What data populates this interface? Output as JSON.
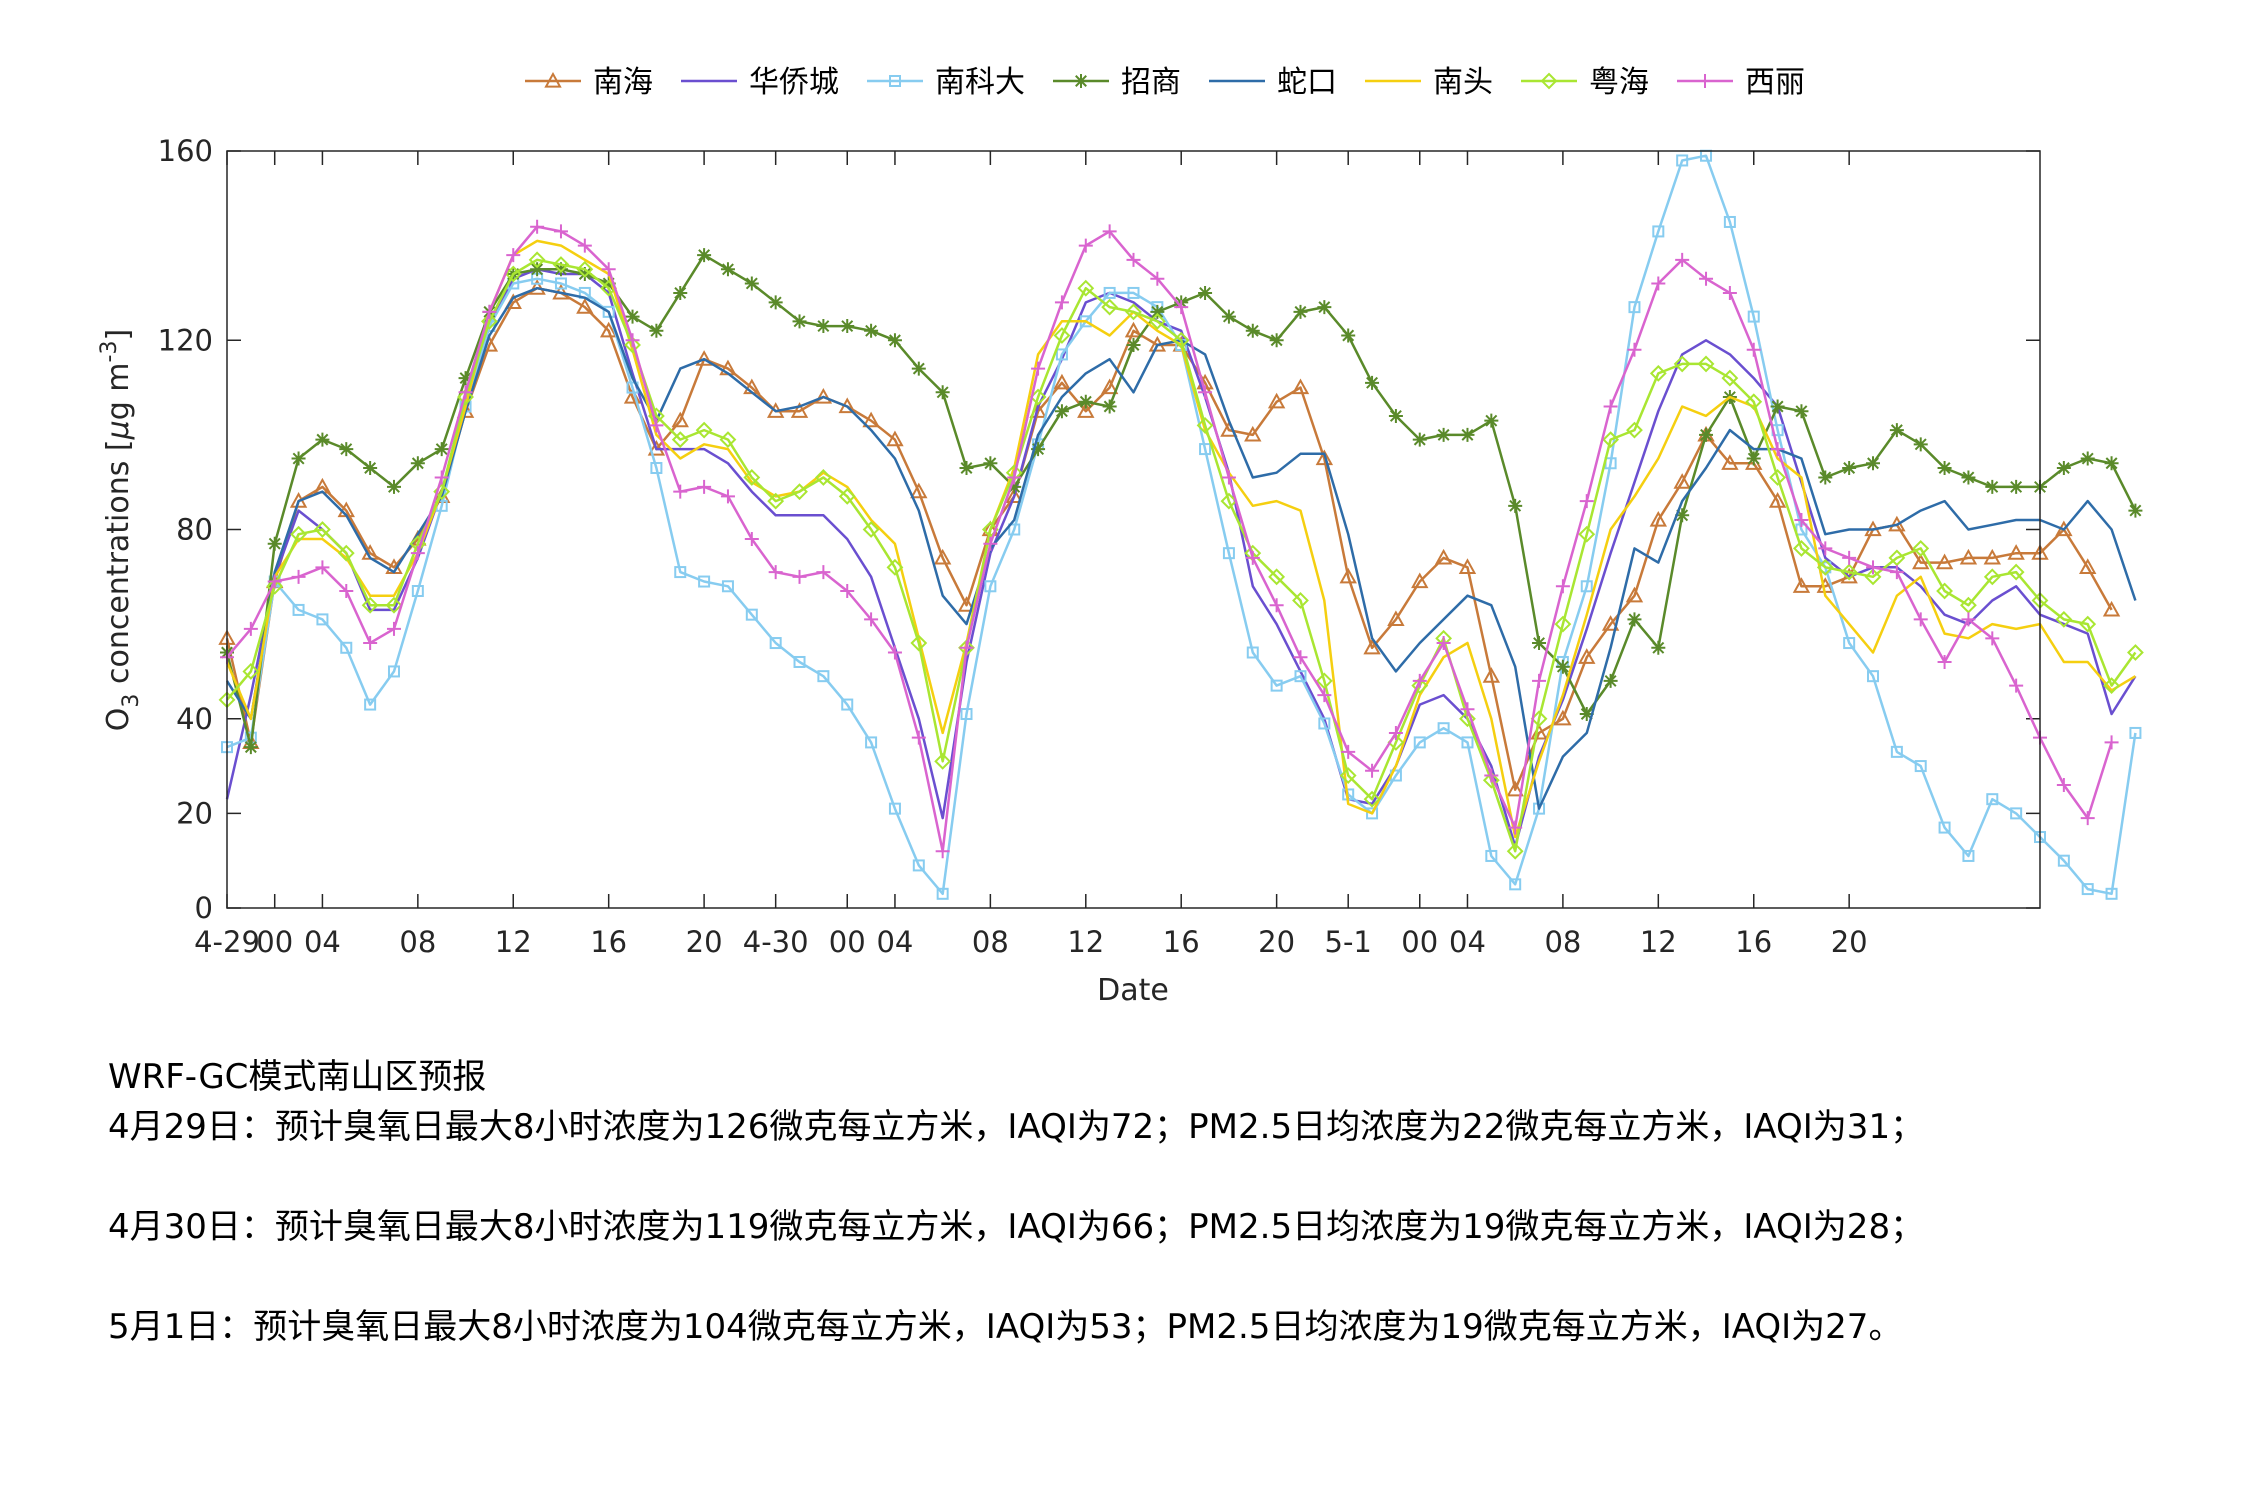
{
  "chart_data": {
    "type": "line",
    "xlabel": "Date",
    "ylabel": "O3 concentrations [μg m-3]",
    "ylabel_parts": {
      "o": "O",
      "sub": "3",
      "middle": " concentrations [",
      "mu": "μ",
      "g": "g m",
      "sup": "-3",
      "end": "]"
    },
    "ylim": [
      0,
      160
    ],
    "yticks": [
      "0",
      "20",
      "40",
      "80",
      "120",
      "160"
    ],
    "ytick_values": [
      0,
      20,
      40,
      80,
      120,
      160
    ],
    "xlim": [
      0,
      76
    ],
    "xticks": [
      {
        "h": 0,
        "label": "4-29"
      },
      {
        "h": 2,
        "label": "00"
      },
      {
        "h": 4,
        "label": "04"
      },
      {
        "h": 8,
        "label": "08"
      },
      {
        "h": 12,
        "label": "12"
      },
      {
        "h": 16,
        "label": "16"
      },
      {
        "h": 20,
        "label": "20"
      },
      {
        "h": 23,
        "label": "4-30"
      },
      {
        "h": 26,
        "label": "00"
      },
      {
        "h": 28,
        "label": "04"
      },
      {
        "h": 32,
        "label": "08"
      },
      {
        "h": 36,
        "label": "12"
      },
      {
        "h": 40,
        "label": "16"
      },
      {
        "h": 44,
        "label": "20"
      },
      {
        "h": 47,
        "label": "5-1"
      },
      {
        "h": 50,
        "label": "00"
      },
      {
        "h": 52,
        "label": "04"
      },
      {
        "h": 56,
        "label": "08"
      },
      {
        "h": 60,
        "label": "12"
      },
      {
        "h": 64,
        "label": "16"
      },
      {
        "h": 68,
        "label": "20"
      }
    ],
    "series": [
      {
        "name": "南海",
        "color": "#c87a3a",
        "marker": "triangle",
        "values": [
          57,
          35,
          69,
          86,
          89,
          84,
          75,
          72,
          78,
          87,
          105,
          119,
          128,
          131,
          130,
          127,
          122,
          108,
          97,
          103,
          116,
          114,
          110,
          105,
          105,
          108,
          106,
          103,
          99,
          88,
          74,
          64,
          80,
          87,
          105,
          111,
          105,
          110,
          122,
          119,
          119,
          111,
          101,
          100,
          107,
          110,
          95,
          70,
          55,
          61,
          69,
          74,
          72,
          49,
          25,
          37,
          40,
          53,
          60,
          66,
          82,
          90,
          100,
          94,
          94,
          86,
          68,
          68,
          70,
          80,
          81,
          73,
          73,
          74,
          74,
          75,
          75,
          80,
          72,
          63
        ]
      },
      {
        "name": "华侨城",
        "color": "#6a4fd0",
        "marker": "none",
        "values": [
          23,
          45,
          70,
          84,
          80,
          75,
          63,
          63,
          74,
          88,
          105,
          123,
          133,
          135,
          134,
          134,
          130,
          113,
          97,
          97,
          97,
          94,
          88,
          83,
          83,
          83,
          78,
          70,
          55,
          40,
          19,
          52,
          75,
          87,
          106,
          116,
          128,
          130,
          128,
          124,
          122,
          108,
          92,
          68,
          60,
          50,
          40,
          23,
          22,
          30,
          43,
          45,
          40,
          30,
          13,
          32,
          44,
          59,
          75,
          90,
          105,
          117,
          120,
          117,
          112,
          106,
          90,
          74,
          70,
          72,
          72,
          68,
          62,
          60,
          65,
          68,
          62,
          60,
          58,
          41,
          49
        ]
      },
      {
        "name": "南科大",
        "color": "#87ccf0",
        "marker": "square",
        "values": [
          34,
          36,
          69,
          63,
          61,
          55,
          43,
          50,
          67,
          85,
          106,
          123,
          132,
          133,
          132,
          130,
          126,
          110,
          93,
          71,
          69,
          68,
          62,
          56,
          52,
          49,
          43,
          35,
          21,
          9,
          3,
          41,
          68,
          80,
          98,
          117,
          124,
          130,
          130,
          127,
          119,
          97,
          75,
          54,
          47,
          49,
          39,
          24,
          20,
          28,
          35,
          38,
          35,
          11,
          5,
          21,
          52,
          68,
          94,
          127,
          143,
          158,
          159,
          145,
          125,
          101,
          80,
          72,
          56,
          49,
          33,
          30,
          17,
          11,
          23,
          20,
          15,
          10,
          4,
          3,
          37
        ]
      },
      {
        "name": "招商",
        "color": "#5a8a2a",
        "marker": "star",
        "values": [
          54,
          34,
          77,
          95,
          99,
          97,
          93,
          89,
          94,
          97,
          112,
          126,
          134,
          135,
          135,
          134,
          132,
          125,
          122,
          130,
          138,
          135,
          132,
          128,
          124,
          123,
          123,
          122,
          120,
          114,
          109,
          93,
          94,
          89,
          97,
          105,
          107,
          106,
          119,
          126,
          128,
          130,
          125,
          122,
          120,
          126,
          127,
          121,
          111,
          104,
          99,
          100,
          100,
          103,
          85,
          56,
          51,
          41,
          48,
          61,
          55,
          83,
          100,
          108,
          95,
          106,
          105,
          91,
          93,
          94,
          101,
          98,
          93,
          91,
          89,
          89,
          89,
          93,
          95,
          94,
          84
        ]
      },
      {
        "name": "蛇口",
        "color": "#2e6ca8",
        "marker": "none",
        "values": [
          48,
          40,
          71,
          86,
          88,
          83,
          74,
          71,
          79,
          87,
          105,
          121,
          129,
          131,
          130,
          129,
          126,
          112,
          103,
          114,
          116,
          113,
          109,
          105,
          106,
          108,
          106,
          101,
          95,
          84,
          66,
          60,
          76,
          82,
          100,
          108,
          113,
          116,
          109,
          119,
          120,
          117,
          103,
          91,
          92,
          96,
          96,
          79,
          57,
          50,
          56,
          61,
          66,
          64,
          51,
          21,
          32,
          37,
          55,
          76,
          73,
          86,
          93,
          101,
          97,
          97,
          95,
          79,
          80,
          80,
          81,
          84,
          86,
          80,
          81,
          82,
          82,
          80,
          86,
          80,
          65
        ]
      },
      {
        "name": "南头",
        "color": "#f5cf10",
        "marker": "none",
        "values": [
          52,
          40,
          70,
          78,
          78,
          74,
          66,
          66,
          75,
          88,
          106,
          126,
          138,
          141,
          140,
          137,
          134,
          118,
          100,
          95,
          98,
          97,
          90,
          87,
          88,
          92,
          89,
          82,
          77,
          57,
          37,
          56,
          80,
          93,
          117,
          124,
          124,
          121,
          126,
          122,
          119,
          101,
          92,
          85,
          86,
          84,
          65,
          22,
          20,
          30,
          45,
          53,
          56,
          40,
          15,
          31,
          45,
          62,
          80,
          87,
          95,
          106,
          104,
          108,
          106,
          95,
          91,
          66,
          60,
          54,
          66,
          70,
          58,
          57,
          60,
          59,
          60,
          52,
          52,
          46,
          49
        ]
      },
      {
        "name": "粤海",
        "color": "#a9e632",
        "marker": "diamond",
        "values": [
          44,
          50,
          68,
          79,
          80,
          75,
          64,
          64,
          77,
          88,
          108,
          124,
          134,
          137,
          136,
          135,
          131,
          119,
          104,
          99,
          101,
          99,
          91,
          86,
          88,
          91,
          87,
          80,
          72,
          56,
          31,
          55,
          80,
          92,
          108,
          121,
          131,
          127,
          126,
          124,
          120,
          102,
          86,
          75,
          70,
          65,
          48,
          28,
          23,
          35,
          47,
          57,
          40,
          27,
          12,
          40,
          60,
          79,
          99,
          101,
          113,
          115,
          115,
          112,
          107,
          91,
          76,
          72,
          71,
          70,
          74,
          76,
          67,
          64,
          70,
          71,
          65,
          61,
          60,
          47,
          54
        ]
      },
      {
        "name": "西丽",
        "color": "#d964cf",
        "marker": "plus",
        "values": [
          53,
          59,
          69,
          70,
          72,
          67,
          56,
          59,
          75,
          91,
          109,
          126,
          138,
          144,
          143,
          140,
          135,
          120,
          102,
          88,
          89,
          87,
          78,
          71,
          70,
          71,
          67,
          61,
          54,
          36,
          12,
          55,
          77,
          91,
          114,
          128,
          140,
          143,
          137,
          133,
          127,
          109,
          91,
          74,
          64,
          53,
          45,
          33,
          29,
          37,
          48,
          56,
          42,
          28,
          17,
          48,
          68,
          86,
          106,
          118,
          132,
          137,
          133,
          130,
          118,
          97,
          82,
          76,
          74,
          72,
          71,
          61,
          52,
          61,
          57,
          47,
          36,
          26,
          19,
          35
        ]
      }
    ]
  },
  "forecast": {
    "title": "WRF-GC模式南山区预报",
    "day1": "4月29日：预计臭氧日最大8小时浓度为126微克每立方米，IAQI为72；PM2.5日均浓度为22微克每立方米，IAQI为31；",
    "day2": "4月30日：预计臭氧日最大8小时浓度为119微克每立方米，IAQI为66；PM2.5日均浓度为19微克每立方米，IAQI为28；",
    "day3": "5月1日：预计臭氧日最大8小时浓度为104微克每立方米，IAQI为53；PM2.5日均浓度为19微克每立方米，IAQI为27。"
  }
}
